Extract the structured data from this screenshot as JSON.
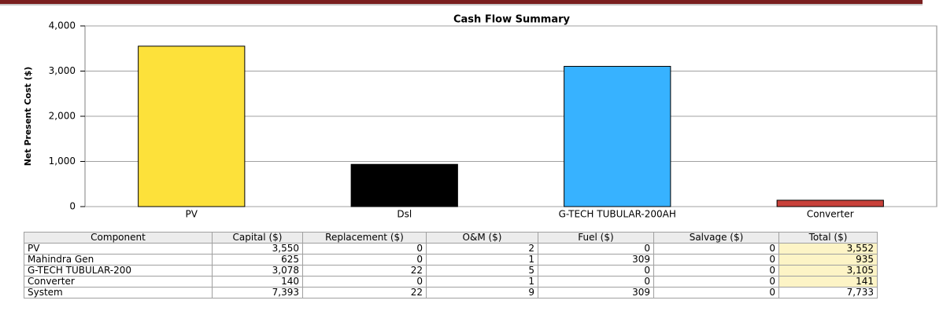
{
  "chart_data": {
    "type": "bar",
    "title": "Cash Flow Summary",
    "y_label": "Net Present Cost ($)",
    "categories": [
      "PV",
      "Dsl",
      "G-TECH TUBULAR-200AH",
      "Converter"
    ],
    "values": [
      3552,
      935,
      3105,
      141
    ],
    "colors": [
      "#fde13a",
      "#000000",
      "#37b2ff",
      "#c8413a"
    ],
    "ylim": [
      0,
      4000
    ],
    "yticks": [
      0,
      {
        "value": 1000,
        "label": "1,000"
      },
      {
        "value": 2000,
        "label": "2,000"
      },
      {
        "value": 3000,
        "label": "3,000"
      },
      {
        "value": 4000,
        "label": "4,000"
      }
    ],
    "grid": true
  },
  "table": {
    "header": [
      "Component",
      "Capital ($)",
      "Replacement ($)",
      "O&M ($)",
      "Fuel ($)",
      "Salvage ($)",
      "Total ($)"
    ],
    "rows": [
      [
        "PV",
        "3,550",
        "0",
        "2",
        "0",
        "0",
        "3,552"
      ],
      [
        "Mahindra Gen",
        "625",
        "0",
        "1",
        "309",
        "0",
        "935"
      ],
      [
        "G-TECH TUBULAR-200",
        "3,078",
        "22",
        "5",
        "0",
        "0",
        "3,105"
      ],
      [
        "Converter",
        "140",
        "0",
        "1",
        "0",
        "0",
        "141"
      ],
      [
        "System",
        "7,393",
        "22",
        "9",
        "309",
        "0",
        "7,733"
      ]
    ]
  }
}
